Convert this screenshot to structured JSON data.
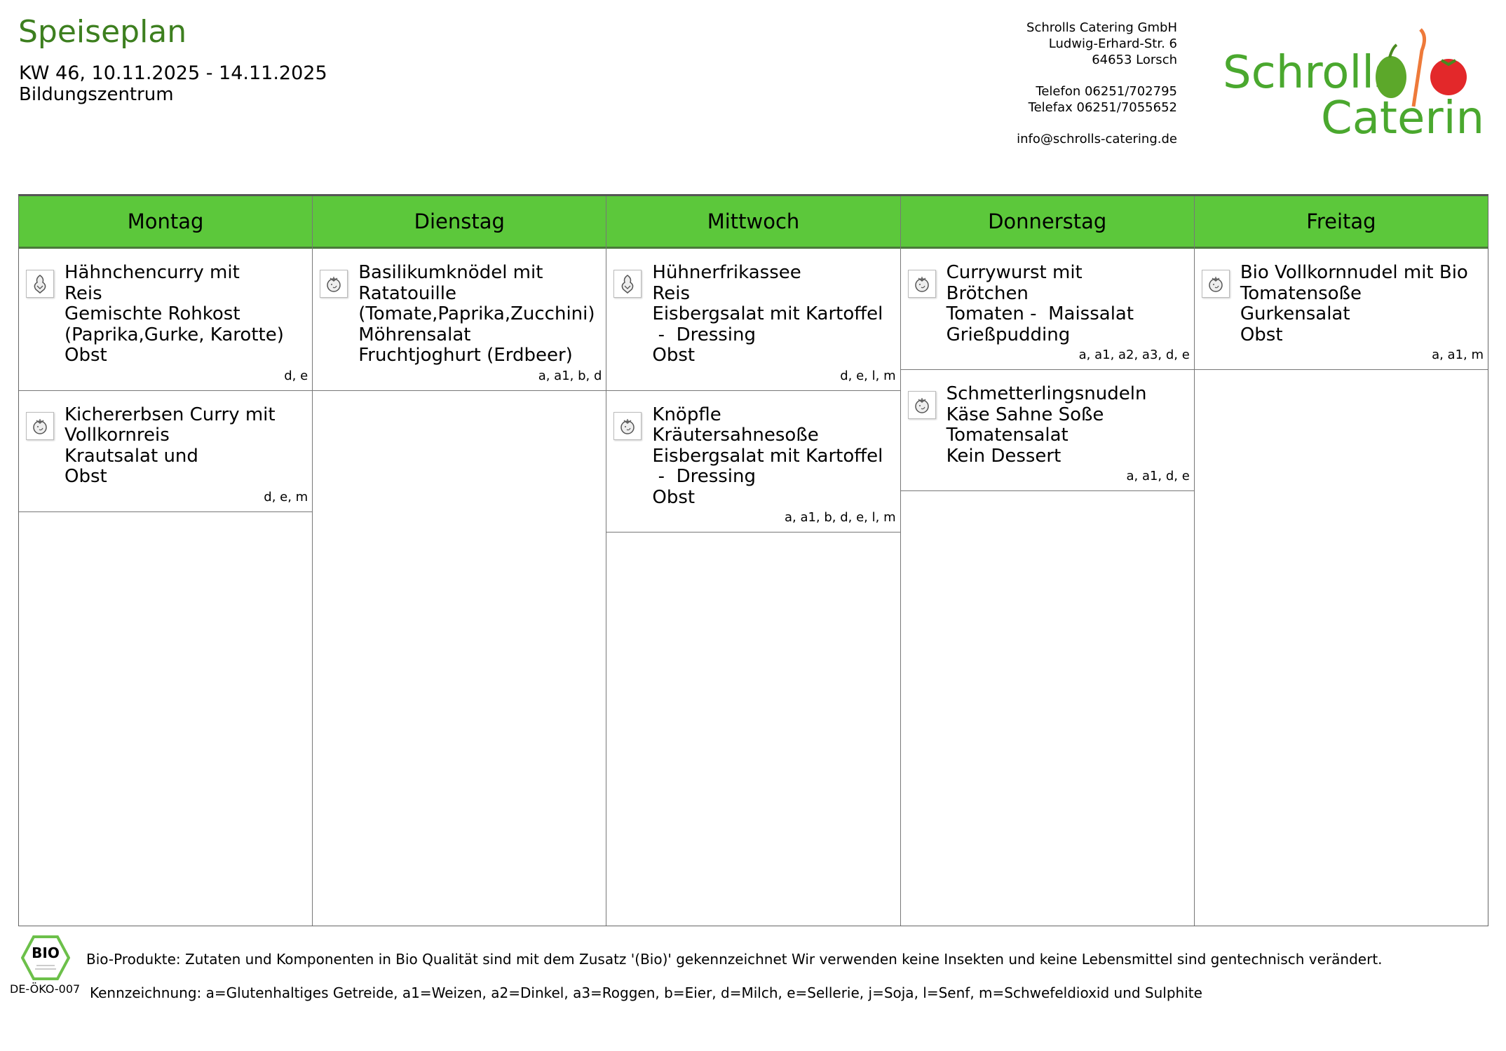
{
  "header": {
    "title": "Speiseplan",
    "week": "KW 46, 10.11.2025 - 14.11.2025",
    "location": "Bildungszentrum"
  },
  "company": {
    "name": "Schrolls Catering GmbH",
    "street": "Ludwig-Erhard-Str. 6",
    "city": "64653 Lorsch",
    "phone": "Telefon 06251/702795",
    "fax": "Telefax 06251/7055652",
    "email": "info@schrolls-catering.de",
    "logo_text": [
      "Schrolls",
      "Catering"
    ]
  },
  "colors": {
    "header_green": "#5cc83b",
    "title_green": "#3d7f1f"
  },
  "days": [
    {
      "name": "Montag",
      "meals": [
        {
          "icon": "chicken-icon",
          "lines": [
            "Hähnchencurry mit",
            "Reis",
            "Gemischte Rohkost",
            "(Paprika,Gurke, Karotte)",
            "Obst"
          ],
          "allergens": "d, e"
        },
        {
          "icon": "vegetarian-icon",
          "lines": [
            "Kichererbsen Curry mit",
            "Vollkornreis",
            "Krautsalat und",
            "Obst"
          ],
          "allergens": "d, e, m"
        }
      ]
    },
    {
      "name": "Dienstag",
      "meals": [
        {
          "icon": "vegetarian-icon",
          "lines": [
            "Basilikumknödel mit",
            "Ratatouille",
            "(Tomate,Paprika,Zucchini)",
            "Möhrensalat",
            "Fruchtjoghurt (Erdbeer)"
          ],
          "allergens": "a, a1, b, d"
        }
      ]
    },
    {
      "name": "Mittwoch",
      "meals": [
        {
          "icon": "chicken-icon",
          "lines": [
            "Hühnerfrikassee",
            "Reis",
            "Eisbergsalat mit Kartoffel",
            " -  Dressing",
            "Obst"
          ],
          "allergens": "d, e, l, m"
        },
        {
          "icon": "vegetarian-icon",
          "lines": [
            "Knöpfle",
            "Kräutersahnesoße",
            "Eisbergsalat mit Kartoffel",
            " -  Dressing",
            "Obst"
          ],
          "allergens": "a, a1, b, d, e, l, m"
        }
      ]
    },
    {
      "name": "Donnerstag",
      "meals": [
        {
          "icon": "vegetarian-icon",
          "lines": [
            "Currywurst mit",
            "Brötchen",
            "Tomaten -  Maissalat",
            "Grießpudding"
          ],
          "allergens": "a, a1, a2, a3, d, e"
        },
        {
          "icon": "vegetarian-icon",
          "lines": [
            "Schmetterlingsnudeln",
            "Käse Sahne Soße",
            "Tomatensalat",
            "Kein Dessert"
          ],
          "allergens": "a, a1, d, e"
        }
      ]
    },
    {
      "name": "Freitag",
      "meals": [
        {
          "icon": "vegetarian-icon",
          "lines": [
            "Bio Vollkornnudel mit Bio",
            "Tomatensoße",
            "Gurkensalat",
            "Obst"
          ],
          "allergens": "a, a1, m"
        }
      ]
    }
  ],
  "footer": {
    "bio_logo_text": "BIO",
    "oeko_code": "DE-ÖKO-007",
    "bio_note": "Bio-Produkte: Zutaten und Komponenten in Bio Qualität sind mit dem Zusatz '(Bio)' gekennzeichnet Wir verwenden keine Insekten und keine Lebensmittel sind gentechnisch verändert.",
    "legend": "Kennzeichnung: a=Glutenhaltiges Getreide, a1=Weizen, a2=Dinkel, a3=Roggen, b=Eier, d=Milch, e=Sellerie, j=Soja, l=Senf, m=Schwefeldioxid und Sulphite"
  }
}
